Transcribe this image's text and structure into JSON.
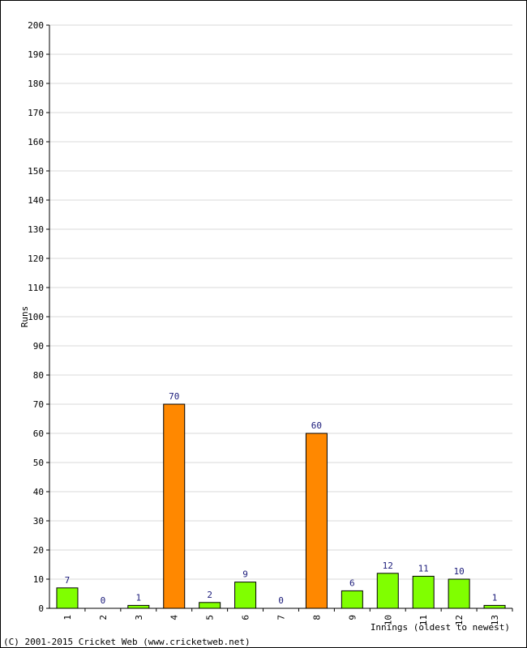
{
  "chart_data": {
    "type": "bar",
    "categories": [
      "1",
      "2",
      "3",
      "4",
      "5",
      "6",
      "7",
      "8",
      "9",
      "10",
      "11",
      "12",
      "13"
    ],
    "values": [
      7,
      0,
      1,
      70,
      2,
      9,
      0,
      60,
      6,
      12,
      11,
      10,
      1
    ],
    "bar_colors": [
      "#80ff00",
      "#80ff00",
      "#80ff00",
      "#ff8800",
      "#80ff00",
      "#80ff00",
      "#80ff00",
      "#ff8800",
      "#80ff00",
      "#80ff00",
      "#80ff00",
      "#80ff00",
      "#80ff00"
    ],
    "ylabel": "Runs",
    "xlabel": "Innings (oldest to newest)",
    "ylim": [
      0,
      200
    ],
    "ytick_step": 10,
    "grid": true,
    "value_labels": true
  },
  "footer": {
    "copyright": "(C) 2001-2015 Cricket Web (www.cricketweb.net)"
  },
  "colors": {
    "grid": "#d8d8d8",
    "axis": "#000000",
    "value_label": "#1a1a7a"
  }
}
